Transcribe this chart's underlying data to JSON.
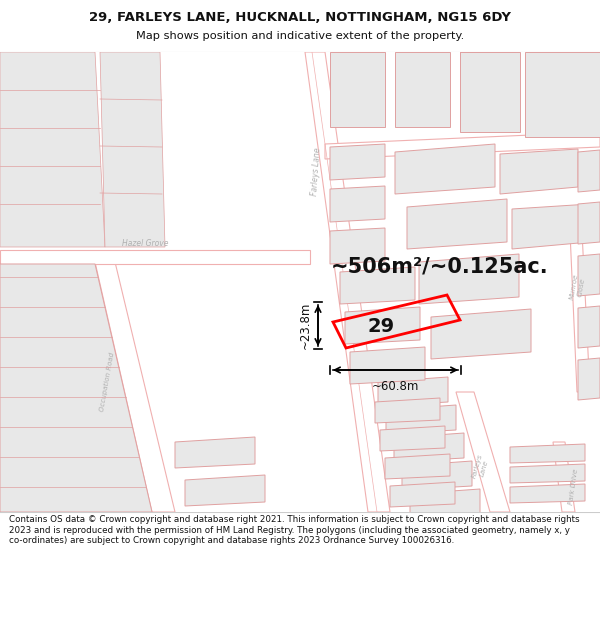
{
  "title_line1": "29, FARLEYS LANE, HUCKNALL, NOTTINGHAM, NG15 6DY",
  "title_line2": "Map shows position and indicative extent of the property.",
  "footer_text": "Contains OS data © Crown copyright and database right 2021. This information is subject to Crown copyright and database rights 2023 and is reproduced with the permission of HM Land Registry. The polygons (including the associated geometry, namely x, y co-ordinates) are subject to Crown copyright and database rights 2023 Ordnance Survey 100026316.",
  "area_label": "~506m²/~0.125ac.",
  "width_label": "~60.8m",
  "height_label": "~23.8m",
  "plot_number": "29",
  "map_bg": "#ffffff",
  "building_fill": "#e8e8e8",
  "building_edge": "#e0a0a0",
  "road_line_color": "#f0b0b0",
  "road_fill": "#ffffff",
  "highlight_color": "#ff0000",
  "text_color": "#111111",
  "footer_bg": "#ffffff",
  "title_bg": "#ffffff",
  "annotation_color": "#000000",
  "street_label_color": "#b0b0b0",
  "title_fontsize": 9.5,
  "subtitle_fontsize": 8.2,
  "footer_fontsize": 6.3,
  "area_fontsize": 15,
  "dim_fontsize": 8.5,
  "plot_num_fontsize": 14
}
